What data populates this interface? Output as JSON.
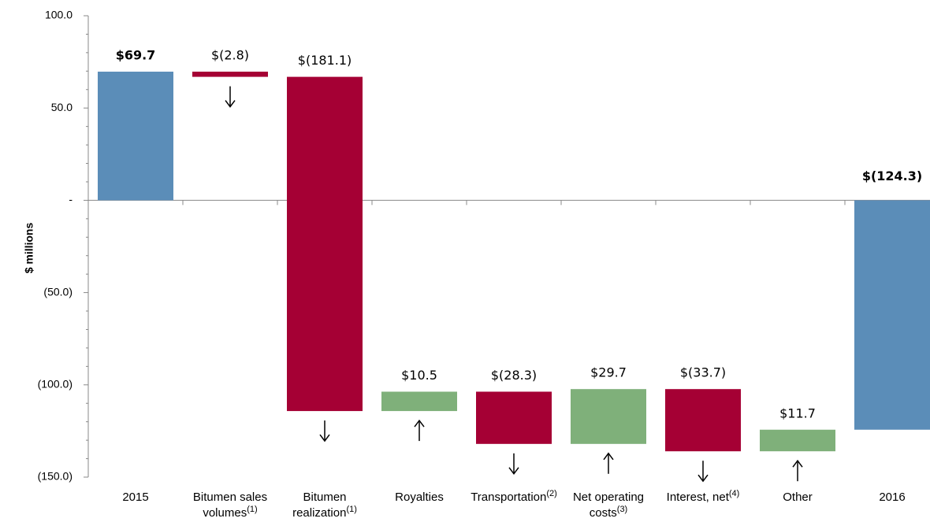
{
  "chart_data": {
    "type": "waterfall",
    "y_label": "$ millions",
    "categories": [
      "2015",
      "Bitumen sales volumes",
      "Bitumen realization",
      "Royalties",
      "Transportation",
      "Net operating costs",
      "Interest, net",
      "Other",
      "2016"
    ],
    "category_notes": [
      null,
      "(1)",
      "(1)",
      null,
      "(2)",
      "(3)",
      "(4)",
      null,
      null
    ],
    "values": [
      69.7,
      -2.8,
      -181.1,
      10.5,
      -28.3,
      29.7,
      -33.7,
      11.7,
      -124.3
    ],
    "value_labels": [
      "$69.7",
      "$(2.8)",
      "$(181.1)",
      "$10.5",
      "$(28.3)",
      "$29.7",
      "$(33.7)",
      "$11.7",
      "$(124.3)"
    ],
    "is_total": [
      true,
      false,
      false,
      false,
      false,
      false,
      false,
      false,
      true
    ],
    "colors": {
      "total": "#5b8db8",
      "decrease": "#a50034",
      "increase": "#7fb07a"
    },
    "ylim": [
      -150,
      100
    ],
    "yticks": [
      {
        "value": 100,
        "label": "100.0"
      },
      {
        "value": 50,
        "label": "50.0"
      },
      {
        "value": 0,
        "label": "-"
      },
      {
        "value": -50,
        "label": "(50.0)"
      },
      {
        "value": -100,
        "label": "(100.0)"
      },
      {
        "value": -150,
        "label": "(150.0)"
      }
    ]
  }
}
